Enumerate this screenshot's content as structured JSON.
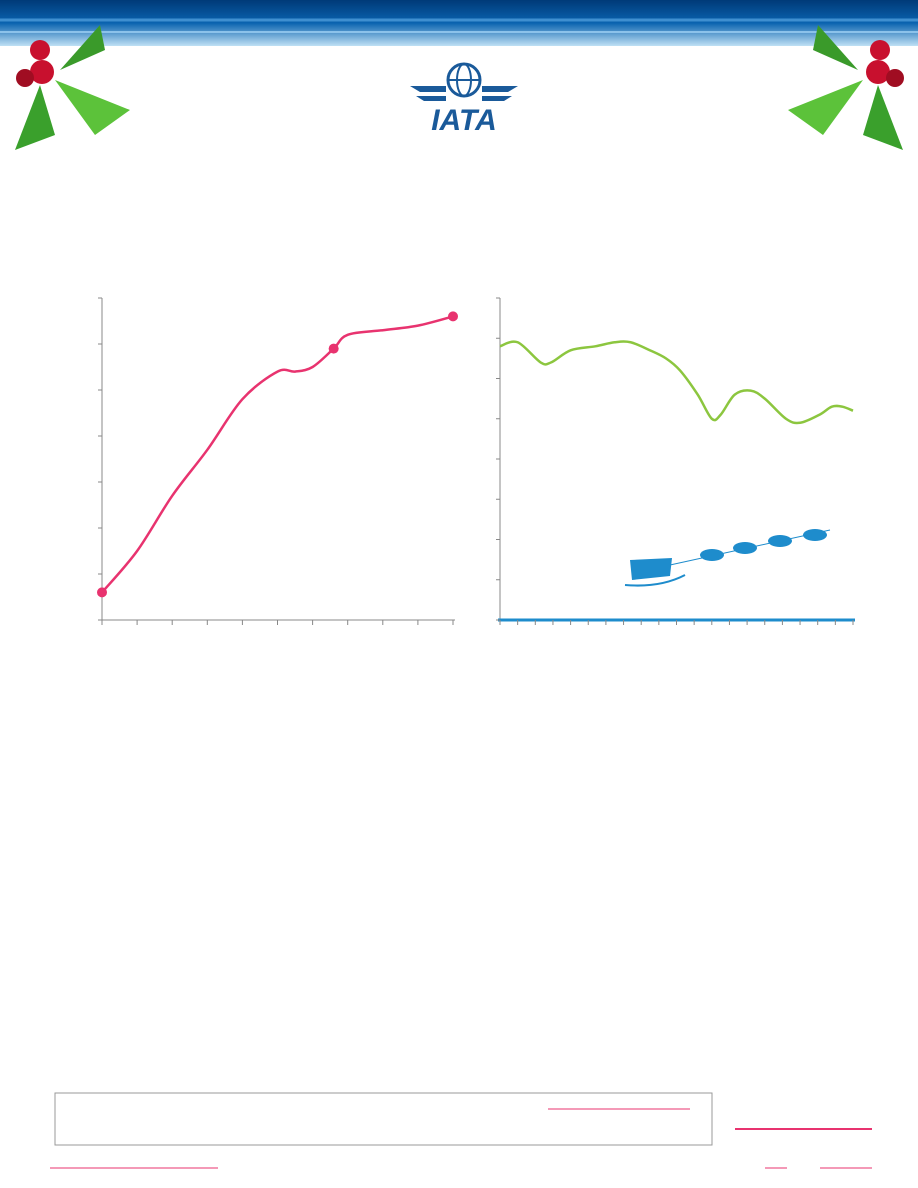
{
  "logo": {
    "text": "IATA"
  },
  "chart_data": [
    {
      "type": "line",
      "xlim": [
        0,
        10
      ],
      "xticks": [
        0,
        1,
        2,
        3,
        4,
        5,
        6,
        7,
        8,
        9,
        10
      ],
      "ylim": [
        0,
        7
      ],
      "yticks": [
        0,
        1,
        2,
        3,
        4,
        5,
        6,
        7
      ],
      "series": [
        {
          "color": "#e8336f",
          "marker": false,
          "x": [
            0,
            1,
            2,
            3,
            4,
            5,
            5.5,
            6,
            6.6,
            7,
            8,
            9,
            10
          ],
          "values": [
            0.6,
            1.5,
            2.7,
            3.7,
            4.8,
            5.4,
            5.4,
            5.5,
            5.9,
            6.2,
            6.3,
            6.4,
            6.6
          ]
        },
        {
          "color": "#e8336f",
          "marker": true,
          "line": false,
          "x": [
            0,
            6.6,
            10
          ],
          "values": [
            0.6,
            5.9,
            6.6
          ]
        }
      ]
    },
    {
      "type": "line",
      "xlim": [
        0,
        20
      ],
      "xticks": [
        0,
        1,
        2,
        3,
        4,
        5,
        6,
        7,
        8,
        9,
        10,
        11,
        12,
        13,
        14,
        15,
        16,
        17,
        18,
        19,
        20
      ],
      "ylim": [
        0,
        8
      ],
      "yticks": [
        0,
        1,
        2,
        3,
        4,
        5,
        6,
        7,
        8
      ],
      "series": [
        {
          "color": "#8cc63f",
          "marker": false,
          "x": [
            0,
            1,
            2.3,
            2.9,
            4,
            5.4,
            6.5,
            7.4,
            8.5,
            9.4,
            10.2,
            11.2,
            12,
            12.5,
            13.3,
            14.2,
            15,
            16.2,
            17,
            18.1,
            18.8,
            19.4,
            20
          ],
          "values": [
            6.8,
            6.9,
            6.4,
            6.4,
            6.7,
            6.8,
            6.9,
            6.9,
            6.7,
            6.5,
            6.2,
            5.6,
            5.0,
            5.1,
            5.6,
            5.7,
            5.5,
            5.0,
            4.9,
            5.1,
            5.3,
            5.3,
            5.2
          ]
        }
      ]
    }
  ]
}
